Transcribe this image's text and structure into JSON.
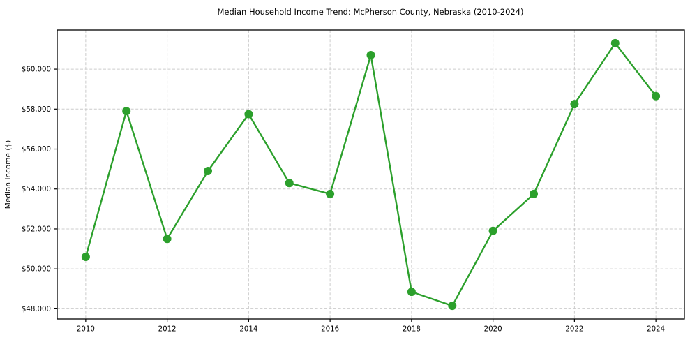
{
  "chart_data": {
    "type": "line",
    "title": "Median Household Income Trend: McPherson County, Nebraska (2010-2024)",
    "xlabel": "",
    "ylabel": "Median Income ($)",
    "x": [
      2010,
      2011,
      2012,
      2013,
      2014,
      2015,
      2016,
      2017,
      2018,
      2019,
      2020,
      2021,
      2022,
      2023,
      2024
    ],
    "series": [
      {
        "name": "Median Household Income",
        "values": [
          50600,
          57900,
          51500,
          54900,
          57750,
          54300,
          53750,
          60700,
          48850,
          48150,
          51900,
          53750,
          58250,
          61300,
          58650
        ]
      }
    ],
    "xticks": [
      2010,
      2012,
      2014,
      2016,
      2018,
      2020,
      2022,
      2024
    ],
    "yticks": [
      48000,
      50000,
      52000,
      54000,
      56000,
      58000,
      60000
    ],
    "ytick_labels": [
      "$48,000",
      "$50,000",
      "$52,000",
      "$54,000",
      "$56,000",
      "$58,000",
      "$60,000"
    ],
    "xlim": [
      2009.3,
      2024.7
    ],
    "ylim": [
      47490,
      61960
    ],
    "grid": true,
    "grid_style": "dashed",
    "grid_color": "#cccccc",
    "line_color": "#2ca02c",
    "marker": "circle",
    "marker_radius": 6,
    "line_width": 2.4,
    "legend": "none",
    "background": "#ffffff"
  }
}
